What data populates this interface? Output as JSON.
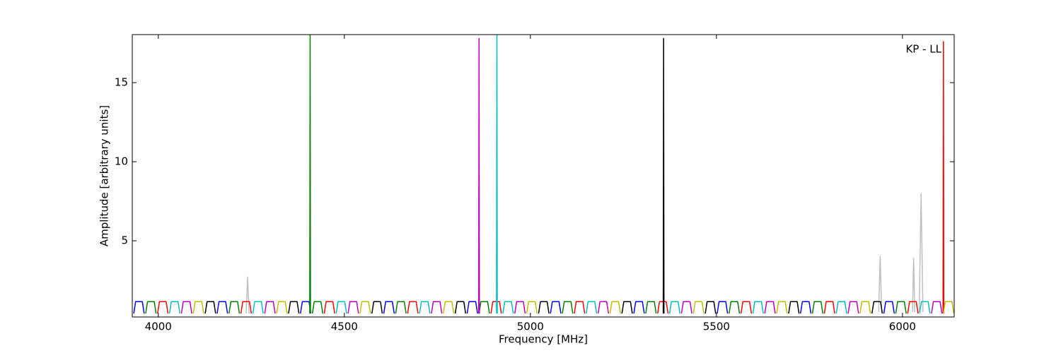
{
  "chart_data": {
    "type": "line",
    "annotation": "KP - LL",
    "xlabel": "Frequency [MHz]",
    "ylabel": "Amplitude [arbitrary units]",
    "xlim": [
      3930,
      6139
    ],
    "ylim": [
      0.18,
      18.04
    ],
    "xticks": [
      4000,
      4500,
      5000,
      5500,
      6000
    ],
    "yticks": [
      5,
      10,
      15
    ],
    "series": [
      {
        "color": "#bfbfbf",
        "x": [
          4236,
          4240,
          4244,
          4245,
          5936,
          5940,
          5944,
          5945,
          6027,
          6030,
          6033,
          6034,
          6045,
          6050,
          6055
        ],
        "values": [
          0.4,
          2.7,
          0.4,
          null,
          0.5,
          4,
          0.5,
          null,
          0.5,
          3.9,
          0.5,
          null,
          0.5,
          8,
          0.5
        ]
      },
      {
        "color": "#0000ff",
        "x": [
          3934,
          3939,
          3957,
          3962,
          3963,
          4158,
          4163,
          4181,
          4186,
          4187,
          4382,
          4387,
          4405,
          4410,
          4411,
          4606,
          4611,
          4629,
          4634,
          4635,
          4830,
          4835,
          4853,
          4858,
          4859,
          5054,
          5059,
          5077,
          5082,
          5083,
          5278,
          5283,
          5301,
          5306,
          5307,
          5502,
          5507,
          5525,
          5530,
          5531,
          5726,
          5731,
          5749,
          5754,
          5755,
          5950,
          5955,
          5973,
          5978,
          5979
        ],
        "values": [
          0.4,
          1.15,
          1.15,
          0.4,
          null,
          0.4,
          1.15,
          1.15,
          0.4,
          null,
          0.4,
          1.15,
          1.15,
          0.4,
          null,
          0.4,
          1.15,
          1.15,
          0.4,
          null,
          0.4,
          1.15,
          1.15,
          0.4,
          null,
          0.4,
          1.15,
          1.15,
          0.4,
          null,
          0.4,
          1.15,
          1.15,
          0.4,
          null,
          0.4,
          1.15,
          1.15,
          0.4,
          null,
          0.4,
          1.15,
          1.15,
          0.4,
          null,
          0.4,
          1.15,
          1.15,
          0.4,
          null
        ]
      },
      {
        "color": "#008000",
        "x": [
          3966,
          3971,
          3989,
          3994,
          3995,
          4190,
          4195,
          4213,
          4218,
          4219,
          4414,
          4419,
          4437,
          4442,
          4443,
          4638,
          4643,
          4661,
          4666,
          4667,
          4862,
          4867,
          4885,
          4890,
          4891,
          5086,
          5091,
          5109,
          5114,
          5115,
          5310,
          5315,
          5333,
          5338,
          5339,
          5534,
          5539,
          5557,
          5562,
          5563,
          5758,
          5763,
          5781,
          5786,
          5787,
          5982,
          5987,
          6005,
          6010,
          6011,
          4407,
          4408,
          4409
        ],
        "values": [
          0.4,
          1.15,
          1.15,
          0.4,
          null,
          0.4,
          1.15,
          1.15,
          0.4,
          null,
          0.4,
          1.15,
          1.15,
          0.4,
          null,
          0.4,
          1.15,
          1.15,
          0.4,
          null,
          0.4,
          1.15,
          1.15,
          0.4,
          null,
          0.4,
          1.15,
          1.15,
          0.4,
          null,
          0.4,
          1.15,
          1.15,
          0.4,
          null,
          0.4,
          1.15,
          1.15,
          0.4,
          null,
          0.4,
          1.15,
          1.15,
          0.4,
          null,
          0.4,
          1.15,
          1.15,
          0.4,
          null,
          0.4,
          18,
          0.4
        ]
      },
      {
        "color": "#ff0000",
        "x": [
          3998,
          4003,
          4021,
          4026,
          4027,
          4222,
          4227,
          4245,
          4250,
          4251,
          4446,
          4451,
          4469,
          4474,
          4475,
          4670,
          4675,
          4693,
          4698,
          4699,
          4894,
          4899,
          4917,
          4922,
          4923,
          5118,
          5123,
          5141,
          5146,
          5147,
          5342,
          5347,
          5365,
          5370,
          5371,
          5566,
          5571,
          5589,
          5594,
          5595,
          5790,
          5795,
          5813,
          5818,
          5819,
          6014,
          6019,
          6037,
          6042,
          6043,
          6109,
          6110,
          6111
        ],
        "values": [
          0.4,
          1.15,
          1.15,
          0.4,
          null,
          0.4,
          1.15,
          1.15,
          0.4,
          null,
          0.4,
          1.15,
          1.15,
          0.4,
          null,
          0.4,
          1.15,
          1.15,
          0.4,
          null,
          0.4,
          1.15,
          1.15,
          0.4,
          null,
          0.4,
          1.15,
          1.15,
          0.4,
          null,
          0.4,
          1.15,
          1.15,
          0.4,
          null,
          0.4,
          1.15,
          1.15,
          0.4,
          null,
          0.4,
          1.15,
          1.15,
          0.4,
          null,
          0.4,
          1.15,
          1.15,
          0.4,
          null,
          0.4,
          17.6,
          0.4
        ]
      },
      {
        "color": "#00bfbf",
        "x": [
          4030,
          4035,
          4053,
          4058,
          4059,
          4254,
          4259,
          4277,
          4282,
          4283,
          4478,
          4483,
          4501,
          4506,
          4507,
          4702,
          4707,
          4725,
          4730,
          4731,
          4926,
          4931,
          4949,
          4954,
          4955,
          5150,
          5155,
          5173,
          5178,
          5179,
          5374,
          5379,
          5397,
          5402,
          5403,
          5598,
          5603,
          5621,
          5626,
          5627,
          5822,
          5827,
          5845,
          5850,
          5851,
          6046,
          6051,
          6069,
          6074,
          6075,
          4909,
          4910,
          4911
        ],
        "values": [
          0.4,
          1.15,
          1.15,
          0.4,
          null,
          0.4,
          1.15,
          1.15,
          0.4,
          null,
          0.4,
          1.15,
          1.15,
          0.4,
          null,
          0.4,
          1.15,
          1.15,
          0.4,
          null,
          0.4,
          1.15,
          1.15,
          0.4,
          null,
          0.4,
          1.15,
          1.15,
          0.4,
          null,
          0.4,
          1.15,
          1.15,
          0.4,
          null,
          0.4,
          1.15,
          1.15,
          0.4,
          null,
          0.4,
          1.15,
          1.15,
          0.4,
          null,
          0.4,
          1.15,
          1.15,
          0.4,
          null,
          0.4,
          18,
          0.4
        ]
      },
      {
        "color": "#bf00bf",
        "x": [
          4062,
          4067,
          4085,
          4090,
          4091,
          4286,
          4291,
          4309,
          4314,
          4315,
          4510,
          4515,
          4533,
          4538,
          4539,
          4734,
          4739,
          4757,
          4762,
          4763,
          4958,
          4963,
          4981,
          4986,
          4987,
          5182,
          5187,
          5205,
          5210,
          5211,
          5406,
          5411,
          5429,
          5434,
          5435,
          5630,
          5635,
          5653,
          5658,
          5659,
          5854,
          5859,
          5877,
          5882,
          5883,
          6078,
          6083,
          6101,
          6106,
          6107,
          4861,
          4862,
          4863
        ],
        "values": [
          0.4,
          1.15,
          1.15,
          0.4,
          null,
          0.4,
          1.15,
          1.15,
          0.4,
          null,
          0.4,
          1.15,
          1.15,
          0.4,
          null,
          0.4,
          1.15,
          1.15,
          0.4,
          null,
          0.4,
          1.15,
          1.15,
          0.4,
          null,
          0.4,
          1.15,
          1.15,
          0.4,
          null,
          0.4,
          1.15,
          1.15,
          0.4,
          null,
          0.4,
          1.15,
          1.15,
          0.4,
          null,
          0.4,
          1.15,
          1.15,
          0.4,
          null,
          0.4,
          1.15,
          1.15,
          0.4,
          null,
          0.4,
          17.8,
          0.4
        ]
      },
      {
        "color": "#bfbf00",
        "x": [
          4094,
          4099,
          4117,
          4122,
          4123,
          4318,
          4323,
          4341,
          4346,
          4347,
          4542,
          4547,
          4565,
          4570,
          4571,
          4766,
          4771,
          4789,
          4794,
          4795,
          4990,
          4995,
          5013,
          5018,
          5019,
          5214,
          5219,
          5237,
          5242,
          5243,
          5438,
          5443,
          5461,
          5466,
          5467,
          5662,
          5667,
          5685,
          5690,
          5691,
          5886,
          5891,
          5909,
          5914,
          5915,
          6110,
          6115,
          6133,
          6138,
          6139
        ],
        "values": [
          0.4,
          1.15,
          1.15,
          0.4,
          null,
          0.4,
          1.15,
          1.15,
          0.4,
          null,
          0.4,
          1.15,
          1.15,
          0.4,
          null,
          0.4,
          1.15,
          1.15,
          0.4,
          null,
          0.4,
          1.15,
          1.15,
          0.4,
          null,
          0.4,
          1.15,
          1.15,
          0.4,
          null,
          0.4,
          1.15,
          1.15,
          0.4,
          null,
          0.4,
          1.15,
          1.15,
          0.4,
          null,
          0.4,
          1.15,
          1.15,
          0.4,
          null,
          0.4,
          1.15,
          1.15,
          0.4,
          null
        ]
      },
      {
        "color": "#000000",
        "x": [
          4126,
          4131,
          4149,
          4154,
          4155,
          4350,
          4355,
          4373,
          4378,
          4379,
          4574,
          4579,
          4597,
          4602,
          4603,
          4798,
          4803,
          4821,
          4826,
          4827,
          5022,
          5027,
          5045,
          5050,
          5051,
          5246,
          5251,
          5269,
          5274,
          5275,
          5470,
          5475,
          5493,
          5498,
          5499,
          5694,
          5699,
          5717,
          5722,
          5723,
          5918,
          5923,
          5941,
          5946,
          5947,
          5357,
          5358,
          5359
        ],
        "values": [
          0.4,
          1.15,
          1.15,
          0.4,
          null,
          0.4,
          1.15,
          1.15,
          0.4,
          null,
          0.4,
          1.15,
          1.15,
          0.4,
          null,
          0.4,
          1.15,
          1.15,
          0.4,
          null,
          0.4,
          1.15,
          1.15,
          0.4,
          null,
          0.4,
          1.15,
          1.15,
          0.4,
          null,
          0.4,
          1.15,
          1.15,
          0.4,
          null,
          0.4,
          1.15,
          1.15,
          0.4,
          null,
          0.4,
          1.15,
          1.15,
          0.4,
          null,
          0.4,
          17.8,
          0.4
        ]
      }
    ]
  }
}
